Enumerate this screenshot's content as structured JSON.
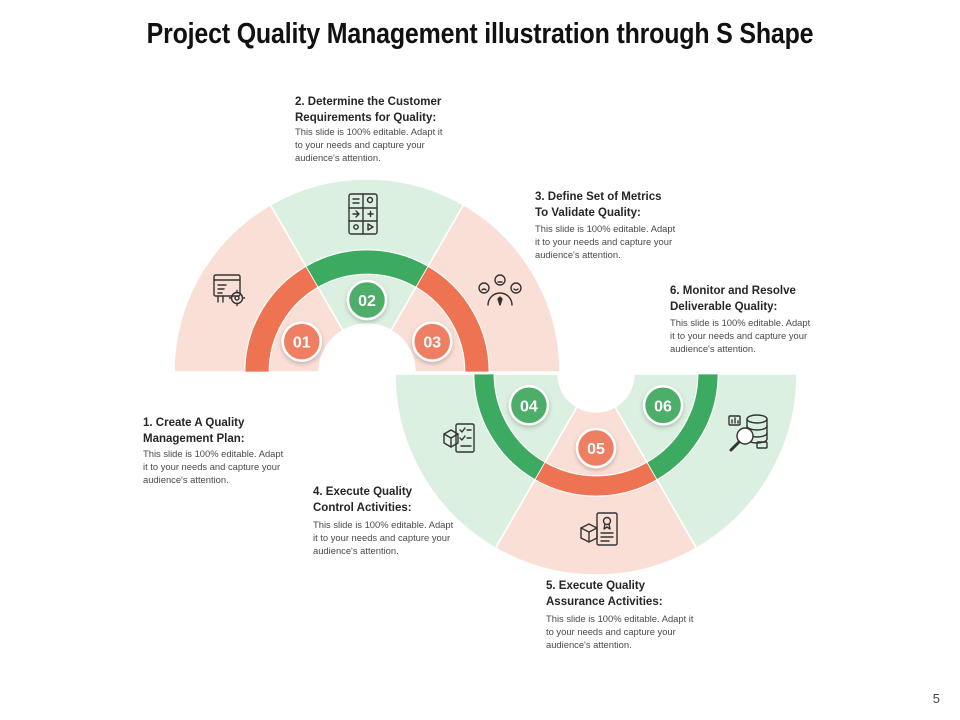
{
  "title": "Project Quality Management illustration through S Shape",
  "page_number": "5",
  "colors": {
    "orange_ring": "#ee7352",
    "green_ring": "#3daa62",
    "orange_fill": "#fadfd6",
    "green_fill": "#dcf0e1",
    "orange_badge": "#ee7f62",
    "green_badge": "#4dae6b"
  },
  "steps": [
    {
      "number": "01",
      "color": "orange",
      "icon": "plan-settings-icon",
      "title": [
        "1. Create A Quality",
        "Management Plan:"
      ],
      "body": [
        "This slide is 100% editable.  Adapt",
        "it to your needs and capture your",
        "audience's attention."
      ]
    },
    {
      "number": "02",
      "color": "green",
      "icon": "calculator-icon",
      "title": [
        "2. Determine the Customer",
        "Requirements for Quality:"
      ],
      "body": [
        "This slide is 100% editable.  Adapt it",
        "to your needs and capture your",
        "audience's attention."
      ]
    },
    {
      "number": "03",
      "color": "orange",
      "icon": "satisfaction-gauge-icon",
      "title": [
        "3. Define Set of Metrics",
        "To Validate  Quality:"
      ],
      "body": [
        "This slide is 100% editable.  Adapt",
        "it to your needs and capture your",
        "audience's attention."
      ]
    },
    {
      "number": "04",
      "color": "green",
      "icon": "checklist-box-icon",
      "title": [
        "4. Execute Quality",
        "Control Activities:"
      ],
      "body": [
        "This slide is 100% editable.  Adapt",
        "it to your needs and capture your",
        "audience's attention."
      ]
    },
    {
      "number": "05",
      "color": "orange",
      "icon": "assurance-document-icon",
      "title": [
        "5. Execute Quality",
        "Assurance Activities:"
      ],
      "body": [
        "This slide is 100% editable.  Adapt it",
        "to your needs and capture your",
        "audience's attention."
      ]
    },
    {
      "number": "06",
      "color": "green",
      "icon": "database-search-icon",
      "title": [
        "6. Monitor and Resolve",
        "Deliverable Quality:"
      ],
      "body": [
        "This slide is 100% editable.  Adapt",
        "it to your needs and capture your",
        "audience's attention."
      ]
    }
  ]
}
